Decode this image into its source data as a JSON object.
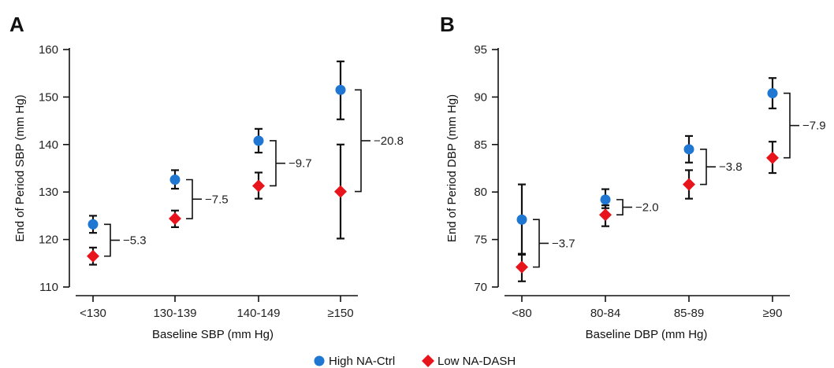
{
  "colors": {
    "high_na_ctrl": "#1f77d2",
    "low_na_dash": "#e8141c",
    "axis": "#111111"
  },
  "legend": {
    "position": "bottom-center",
    "items": [
      {
        "label": "High NA-Ctrl",
        "color": "#1f77d2",
        "marker": "circle"
      },
      {
        "label": "Low NA-DASH",
        "color": "#e8141c",
        "marker": "diamond"
      }
    ]
  },
  "chart_data": [
    {
      "type": "scatter",
      "panel": "A",
      "xlabel": "Baseline SBP (mm Hg)",
      "ylabel": "End of Period SBP (mm Hg)",
      "ylim": [
        110,
        160
      ],
      "yticks": [
        110,
        120,
        130,
        140,
        150,
        160
      ],
      "categories": [
        "<130",
        "130-139",
        "140-149",
        "≥150"
      ],
      "series": [
        {
          "name": "High NA-Ctrl",
          "marker": "circle",
          "values": [
            123.2,
            132.6,
            140.8,
            151.5
          ],
          "err_low": [
            121.4,
            130.7,
            138.3,
            145.3
          ],
          "err_high": [
            125.0,
            134.6,
            143.3,
            157.5
          ]
        },
        {
          "name": "Low NA-DASH",
          "marker": "diamond",
          "values": [
            116.5,
            124.4,
            131.3,
            130.1
          ],
          "err_low": [
            114.7,
            122.6,
            128.6,
            120.2
          ],
          "err_high": [
            118.3,
            126.1,
            134.1,
            140.0
          ]
        }
      ],
      "differences": [
        "−5.3",
        "−7.5",
        "−9.7",
        "−20.8"
      ]
    },
    {
      "type": "scatter",
      "panel": "B",
      "xlabel": "Baseline DBP (mm Hg)",
      "ylabel": "End of Period DBP (mm Hg)",
      "ylim": [
        70,
        95
      ],
      "yticks": [
        70,
        75,
        80,
        85,
        90,
        95
      ],
      "categories": [
        "<80",
        "80-84",
        "85-89",
        "≥90"
      ],
      "series": [
        {
          "name": "High NA-Ctrl",
          "marker": "circle",
          "values": [
            77.1,
            79.2,
            84.5,
            90.4
          ],
          "err_low": [
            73.4,
            78.3,
            83.1,
            88.8
          ],
          "err_high": [
            80.8,
            80.3,
            85.9,
            92.0
          ]
        },
        {
          "name": "Low NA-DASH",
          "marker": "diamond",
          "values": [
            72.1,
            77.6,
            80.8,
            83.6
          ],
          "err_low": [
            70.6,
            76.4,
            79.3,
            82.0
          ],
          "err_high": [
            73.5,
            78.6,
            82.3,
            85.3
          ]
        }
      ],
      "differences": [
        "−3.7",
        "−2.0",
        "−3.8",
        "−7.9"
      ]
    }
  ]
}
